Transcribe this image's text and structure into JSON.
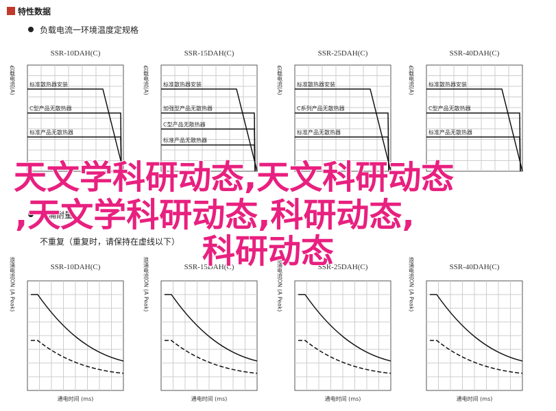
{
  "header": {
    "title": "特性数据"
  },
  "section1": {
    "bullet": "负载电流一环境温度定规格",
    "charts": [
      {
        "title": "SSR-10DAH(C)",
        "y_label": "负载电流(A)",
        "labels": [
          "标准散热器安装",
          "C型产品无散热器",
          "标准产品无散热器"
        ]
      },
      {
        "title": "SSR-15DAH(C)",
        "y_label": "负载电流(A)",
        "labels": [
          "标准散热器安装",
          "加强型产品无散热器",
          "C型产品无散热器",
          "标准产品无散热器"
        ]
      },
      {
        "title": "SSR-25DAH(C)",
        "y_label": "负载电流(A)",
        "labels": [
          "标准散热器安装",
          "C系列产品无散热器",
          "标准产品无散热器"
        ]
      },
      {
        "title": "SSR-40DAH(C)",
        "y_label": "负载电流(A)",
        "labels": [
          "标准散热器安装",
          "C型产品无散热器",
          "标准产品无散热器"
        ]
      }
    ]
  },
  "section2": {
    "bullet": "浪涌耐量",
    "note": "不重复（重复时，请保持在虚线以下）",
    "charts": [
      {
        "title": "SSR-10DAH(C)",
        "y_label": "浪涌电流ON (A Peak)",
        "x_label": "通电时间 (ms)"
      },
      {
        "title": "SSR-15DAH(C)",
        "y_label": "浪涌电流ON (A Peak)",
        "x_label": "通电时间 (ms)"
      },
      {
        "title": "SSR-25DAH(C)",
        "y_label": "浪涌电流ON (A Peak)",
        "x_label": "通电时间 (ms)"
      },
      {
        "title": "SSR-40DAH(C)",
        "y_label": "浪涌电流ON (A Peak)",
        "x_label": "通电时间 (ms)"
      }
    ]
  },
  "overlay": [
    "天文学科研动态,天文科研动态",
    ",天文学科研动态,科研动态,",
    "科研动态"
  ]
}
